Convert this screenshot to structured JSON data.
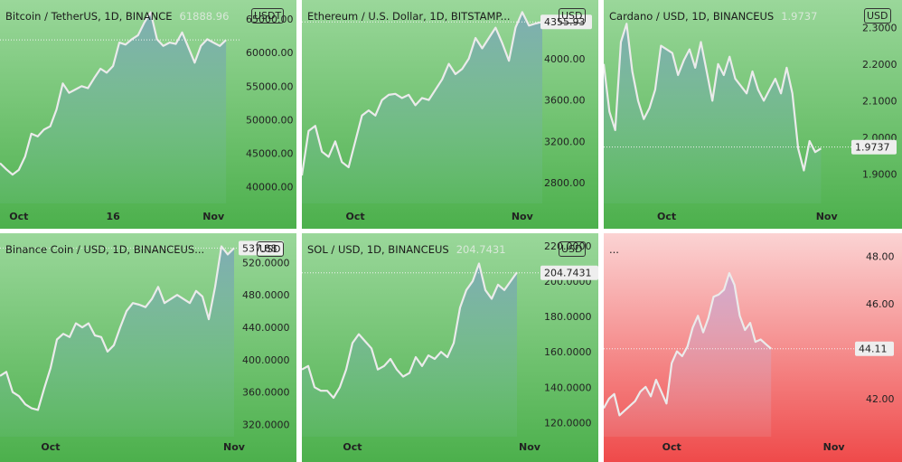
{
  "chart_data": [
    {
      "type": "area",
      "title": "Bitcoin / TetherUS, 1D, BINANCE",
      "last_label": "61888.96",
      "currency": "USDT",
      "yticks": [
        "65000.00",
        "60000.00",
        "55000.00",
        "50000.00",
        "45000.00",
        "40000.00"
      ],
      "ytick_values": [
        65000,
        60000,
        55000,
        50000,
        45000,
        40000
      ],
      "ylim": [
        37500,
        66500
      ],
      "xlim": [
        0,
        38
      ],
      "xticks": [
        {
          "label": "Oct",
          "x": 3
        },
        {
          "label": "16",
          "x": 18
        },
        {
          "label": "Nov",
          "x": 34
        }
      ],
      "last_value": 61888.96,
      "y": [
        43500,
        42600,
        41800,
        42500,
        44500,
        47900,
        47500,
        48500,
        49000,
        51500,
        55400,
        54000,
        54500,
        55000,
        54700,
        56200,
        57600,
        57000,
        58000,
        61500,
        61200,
        62000,
        62600,
        64500,
        66000,
        62000,
        61000,
        61500,
        61300,
        63000,
        60800,
        58500,
        61000,
        62000,
        61500,
        61000,
        61889
      ]
    },
    {
      "type": "area",
      "title": "Ethereum / U.S. Dollar, 1D, BITSTAMP...",
      "last_label": "",
      "currency": "USD",
      "yticks": [
        "4000.00",
        "3600.00",
        "3200.00",
        "2800.00"
      ],
      "ytick_values": [
        4000,
        3600,
        3200,
        2800
      ],
      "ylim": [
        2600,
        4480
      ],
      "xlim": [
        0,
        36
      ],
      "xticks": [
        {
          "label": "Oct",
          "x": 8
        },
        {
          "label": "Nov",
          "x": 33
        }
      ],
      "last_value": 4355.93,
      "last_box": "4355.93",
      "y": [
        2870,
        3300,
        3350,
        3100,
        3050,
        3200,
        3000,
        2950,
        3200,
        3450,
        3500,
        3450,
        3600,
        3650,
        3660,
        3620,
        3650,
        3550,
        3620,
        3600,
        3700,
        3800,
        3950,
        3850,
        3900,
        4000,
        4200,
        4100,
        4200,
        4300,
        4150,
        3980,
        4300,
        4450,
        4320,
        4340,
        4356
      ]
    },
    {
      "type": "area",
      "title": "Cardano / USD, 1D, BINANCEUS",
      "last_label": "1.9737",
      "currency": "USD",
      "yticks": [
        "2.3000",
        "2.2000",
        "2.1000",
        "2.0000",
        "1.9000"
      ],
      "ytick_values": [
        2.3,
        2.2,
        2.1,
        2.0,
        1.9
      ],
      "ylim": [
        1.82,
        2.35
      ],
      "xlim": [
        0,
        43
      ],
      "xticks": [
        {
          "label": "Oct",
          "x": 11
        },
        {
          "label": "Nov",
          "x": 39
        }
      ],
      "last_value": 1.9737,
      "last_box": "1.9737",
      "y": [
        2.2,
        2.07,
        2.02,
        2.26,
        2.31,
        2.18,
        2.1,
        2.05,
        2.08,
        2.13,
        2.25,
        2.24,
        2.23,
        2.17,
        2.21,
        2.24,
        2.19,
        2.26,
        2.18,
        2.1,
        2.2,
        2.17,
        2.22,
        2.16,
        2.14,
        2.12,
        2.18,
        2.13,
        2.1,
        2.13,
        2.16,
        2.12,
        2.19,
        2.12,
        1.97,
        1.91,
        1.99,
        1.96,
        1.97
      ]
    },
    {
      "type": "area",
      "title": "Binance Coin / USD, 1D, BINANCEUS...",
      "last_label": "",
      "currency": "USD",
      "yticks": [
        "520.0000",
        "480.0000",
        "440.0000",
        "400.0000",
        "360.0000",
        "320.0000"
      ],
      "ytick_values": [
        520,
        480,
        440,
        400,
        360,
        320
      ],
      "ylim": [
        305,
        545
      ],
      "xlim": [
        0,
        38
      ],
      "xticks": [
        {
          "label": "Oct",
          "x": 8
        },
        {
          "label": "Nov",
          "x": 37
        }
      ],
      "last_value": 537.88,
      "last_box": "537.88",
      "y": [
        380,
        385,
        360,
        355,
        345,
        340,
        338,
        365,
        390,
        425,
        432,
        428,
        445,
        440,
        445,
        430,
        428,
        410,
        418,
        440,
        460,
        470,
        468,
        465,
        475,
        490,
        470,
        475,
        480,
        475,
        470,
        485,
        478,
        450,
        490,
        540,
        530,
        538
      ]
    },
    {
      "type": "area",
      "title": "SOL / USD, 1D, BINANCEUS",
      "last_label": "204.7431",
      "currency": "USD",
      "yticks": [
        "220.0000",
        "200.0000",
        "180.0000",
        "160.0000",
        "140.0000",
        "120.0000"
      ],
      "ytick_values": [
        220,
        200,
        180,
        160,
        140,
        120
      ],
      "ylim": [
        112,
        222
      ],
      "xlim": [
        0,
        38
      ],
      "xticks": [
        {
          "label": "Oct",
          "x": 8
        },
        {
          "label": "Nov",
          "x": 36
        }
      ],
      "last_value": 204.7431,
      "last_box": "204.7431",
      "y": [
        150,
        152,
        140,
        138,
        138,
        134,
        140,
        150,
        165,
        170,
        166,
        162,
        150,
        152,
        156,
        150,
        146,
        148,
        157,
        152,
        158,
        156,
        160,
        157,
        165,
        185,
        195,
        200,
        210,
        195,
        190,
        198,
        195,
        200,
        205
      ]
    },
    {
      "type": "area",
      "title": "...",
      "last_label": "",
      "currency": "",
      "yticks": [
        "48.00",
        "46.00",
        "44.00",
        "42.00"
      ],
      "ytick_values": [
        48,
        46,
        44,
        42
      ],
      "ylim": [
        40.4,
        48.6
      ],
      "xlim": [
        0,
        47
      ],
      "xticks": [
        {
          "label": "Oct",
          "x": 13
        },
        {
          "label": "Nov",
          "x": 44
        }
      ],
      "last_value": 44.11,
      "last_box": "44.11",
      "y": [
        41.6,
        42.0,
        42.2,
        41.3,
        41.5,
        41.7,
        41.9,
        42.3,
        42.5,
        42.1,
        42.8,
        42.3,
        41.8,
        43.5,
        44.0,
        43.8,
        44.2,
        45.0,
        45.5,
        44.8,
        45.4,
        46.3,
        46.4,
        46.6,
        47.3,
        46.8,
        45.5,
        44.9,
        45.2,
        44.4,
        44.5,
        44.3,
        44.11
      ]
    }
  ],
  "colors": {
    "green_top": "#9ad79a",
    "green_bottom": "#4cb04c",
    "red_top": "#fbd3d3",
    "red_bottom": "#ef4a4a",
    "line": "#ebebeb",
    "fill": "#7fb8ab"
  }
}
